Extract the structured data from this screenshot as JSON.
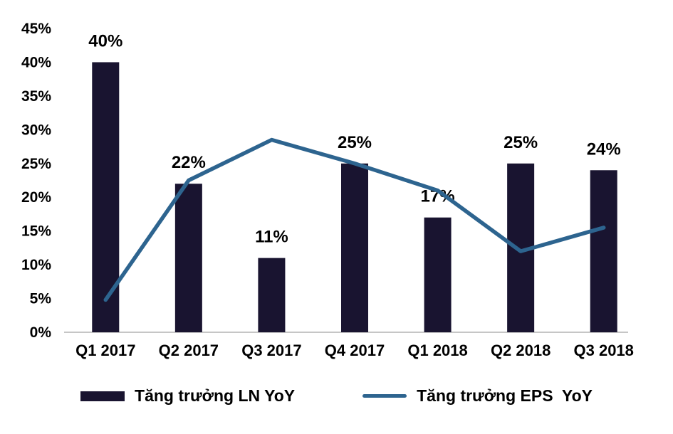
{
  "chart_data": {
    "type": "bar",
    "subtype": "bar-and-line-combo",
    "title": "",
    "xlabel": "",
    "ylabel": "",
    "categories": [
      "Q1 2017",
      "Q2 2017",
      "Q3 2017",
      "Q4 2017",
      "Q1 2018",
      "Q2 2018",
      "Q3 2018"
    ],
    "series": [
      {
        "name": "Tăng trưởng LN YoY",
        "type": "bar",
        "color": "#191430",
        "values": [
          40,
          22,
          11,
          25,
          17,
          25,
          24
        ],
        "data_labels": [
          "40%",
          "22%",
          "11%",
          "25%",
          "17%",
          "25%",
          "24%"
        ]
      },
      {
        "name": "Tăng trưởng EPS  YoY",
        "type": "line",
        "color": "#2d648f",
        "values": [
          4.8,
          22.5,
          28.5,
          25,
          21,
          12,
          15.5
        ]
      }
    ],
    "y_axis": {
      "min": 0,
      "max": 45,
      "step": 5,
      "ticks": [
        {
          "v": 0,
          "label": "0%"
        },
        {
          "v": 5,
          "label": "5%"
        },
        {
          "v": 10,
          "label": "10%"
        },
        {
          "v": 15,
          "label": "15%"
        },
        {
          "v": 20,
          "label": "20%"
        },
        {
          "v": 25,
          "label": "25%"
        },
        {
          "v": 30,
          "label": "30%"
        },
        {
          "v": 35,
          "label": "35%"
        },
        {
          "v": 40,
          "label": "40%"
        },
        {
          "v": 45,
          "label": "45%"
        }
      ]
    },
    "grid": false,
    "legend_position": "bottom",
    "axis_line_color": "#c6c6c6",
    "background_color": "#ffffff"
  }
}
